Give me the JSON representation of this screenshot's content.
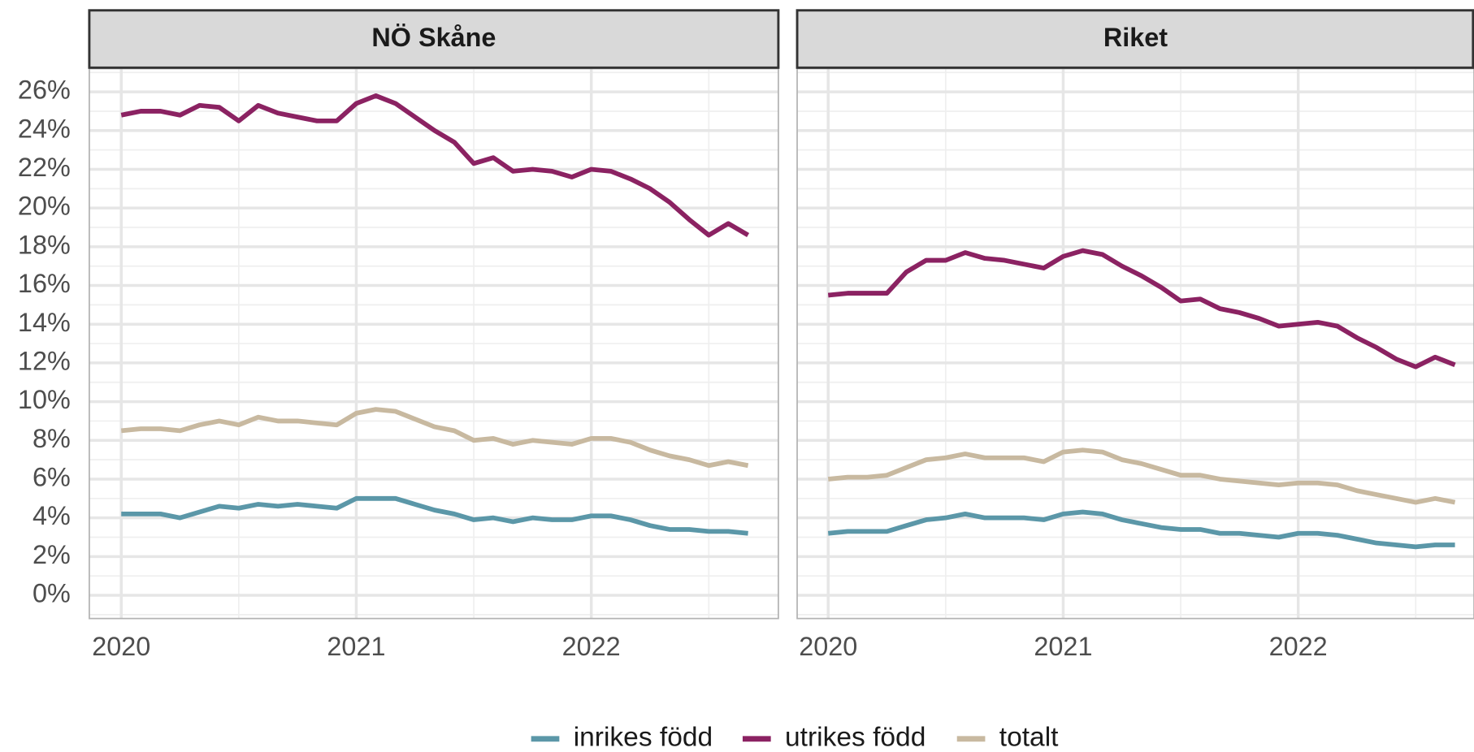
{
  "chart_data": [
    {
      "type": "line",
      "title": "NÖ Skåne",
      "x": [
        2020,
        2020.083,
        2020.167,
        2020.25,
        2020.333,
        2020.417,
        2020.5,
        2020.583,
        2020.667,
        2020.75,
        2020.833,
        2020.917,
        2021,
        2021.083,
        2021.167,
        2021.25,
        2021.333,
        2021.417,
        2021.5,
        2021.583,
        2021.667,
        2021.75,
        2021.833,
        2021.917,
        2022,
        2022.083,
        2022.167,
        2022.25,
        2022.333,
        2022.417,
        2022.5,
        2022.583,
        2022.667
      ],
      "series": [
        {
          "name": "inrikes född",
          "color": "#5b97a8",
          "values": [
            4.2,
            4.2,
            4.2,
            4.0,
            4.3,
            4.6,
            4.5,
            4.7,
            4.6,
            4.7,
            4.6,
            4.5,
            5.0,
            5.0,
            5.0,
            4.7,
            4.4,
            4.2,
            3.9,
            4.0,
            3.8,
            4.0,
            3.9,
            3.9,
            4.1,
            4.1,
            3.9,
            3.6,
            3.4,
            3.4,
            3.3,
            3.3,
            3.2
          ]
        },
        {
          "name": "utrikes född",
          "color": "#8b2262",
          "values": [
            24.8,
            25.0,
            25.0,
            24.8,
            25.3,
            25.2,
            24.5,
            25.3,
            24.9,
            24.7,
            24.5,
            24.5,
            25.4,
            25.8,
            25.4,
            24.7,
            24.0,
            23.4,
            22.3,
            22.6,
            21.9,
            22.0,
            21.9,
            21.6,
            22.0,
            21.9,
            21.5,
            21.0,
            20.3,
            19.4,
            18.6,
            19.2,
            18.6
          ]
        },
        {
          "name": "totalt",
          "color": "#c8b9a0",
          "values": [
            8.5,
            8.6,
            8.6,
            8.5,
            8.8,
            9.0,
            8.8,
            9.2,
            9.0,
            9.0,
            8.9,
            8.8,
            9.4,
            9.6,
            9.5,
            9.1,
            8.7,
            8.5,
            8.0,
            8.1,
            7.8,
            8.0,
            7.9,
            7.8,
            8.1,
            8.1,
            7.9,
            7.5,
            7.2,
            7.0,
            6.7,
            6.9,
            6.7
          ]
        }
      ],
      "xlim": [
        2019.864,
        2022.796
      ],
      "xticks": [
        2020,
        2021,
        2022
      ],
      "ylim": [
        -1.2,
        27.2
      ],
      "yticks": [
        {
          "value": 0,
          "label": "0%"
        },
        {
          "value": 2,
          "label": "2%"
        },
        {
          "value": 4,
          "label": "4%"
        },
        {
          "value": 6,
          "label": "6%"
        },
        {
          "value": 8,
          "label": "8%"
        },
        {
          "value": 10,
          "label": "10%"
        },
        {
          "value": 12,
          "label": "12%"
        },
        {
          "value": 14,
          "label": "14%"
        },
        {
          "value": 16,
          "label": "16%"
        },
        {
          "value": 18,
          "label": "18%"
        },
        {
          "value": 20,
          "label": "20%"
        },
        {
          "value": 22,
          "label": "22%"
        },
        {
          "value": 24,
          "label": "24%"
        },
        {
          "value": 26,
          "label": "26%"
        }
      ],
      "grid": true,
      "legend": "bottom"
    },
    {
      "type": "line",
      "title": "Riket",
      "x": [
        2020,
        2020.083,
        2020.167,
        2020.25,
        2020.333,
        2020.417,
        2020.5,
        2020.583,
        2020.667,
        2020.75,
        2020.833,
        2020.917,
        2021,
        2021.083,
        2021.167,
        2021.25,
        2021.333,
        2021.417,
        2021.5,
        2021.583,
        2021.667,
        2021.75,
        2021.833,
        2021.917,
        2022,
        2022.083,
        2022.167,
        2022.25,
        2022.333,
        2022.417,
        2022.5,
        2022.583,
        2022.667
      ],
      "series": [
        {
          "color": "#5b97a8",
          "values": [
            3.2,
            3.3,
            3.3,
            3.3,
            3.6,
            3.9,
            4.0,
            4.2,
            4.0,
            4.0,
            4.0,
            3.9,
            4.2,
            4.3,
            4.2,
            3.9,
            3.7,
            3.5,
            3.4,
            3.4,
            3.2,
            3.2,
            3.1,
            3.0,
            3.2,
            3.2,
            3.1,
            2.9,
            2.7,
            2.6,
            2.5,
            2.6,
            2.6
          ]
        },
        {
          "color": "#8b2262",
          "values": [
            15.5,
            15.6,
            15.6,
            15.6,
            16.7,
            17.3,
            17.3,
            17.7,
            17.4,
            17.3,
            17.1,
            16.9,
            17.5,
            17.8,
            17.6,
            17.0,
            16.5,
            15.9,
            15.2,
            15.3,
            14.8,
            14.6,
            14.3,
            13.9,
            14.0,
            14.1,
            13.9,
            13.3,
            12.8,
            12.2,
            11.8,
            12.3,
            11.9
          ]
        },
        {
          "color": "#c8b9a0",
          "values": [
            6.0,
            6.1,
            6.1,
            6.2,
            6.6,
            7.0,
            7.1,
            7.3,
            7.1,
            7.1,
            7.1,
            6.9,
            7.4,
            7.5,
            7.4,
            7.0,
            6.8,
            6.5,
            6.2,
            6.2,
            6.0,
            5.9,
            5.8,
            5.7,
            5.8,
            5.8,
            5.7,
            5.4,
            5.2,
            5.0,
            4.8,
            5.0,
            4.8
          ]
        }
      ],
      "xlim": [
        2019.868,
        2022.748
      ],
      "xticks": [
        2020,
        2021,
        2022
      ],
      "ylim": [
        -1.2,
        27.2
      ],
      "yticks": [
        0,
        2,
        4,
        6,
        8,
        10,
        12,
        14,
        16,
        18,
        20,
        22,
        24,
        26
      ],
      "grid": true
    }
  ]
}
